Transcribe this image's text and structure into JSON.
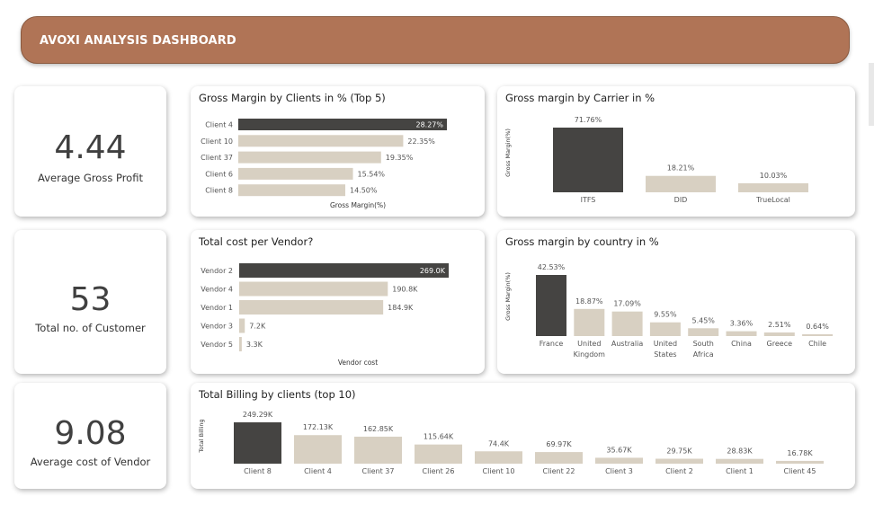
{
  "header": {
    "title": "AVOXI ANALYSIS DASHBOARD"
  },
  "kpis": [
    {
      "value": "4.44",
      "label": "Average Gross Profit"
    },
    {
      "value": "53",
      "label": "Total no. of Customer"
    },
    {
      "value": "9.08",
      "label": "Average cost of Vendor"
    }
  ],
  "colors": {
    "highlight": "#454442",
    "bar": "#d8d0c2",
    "header": "#b07456"
  },
  "chart_data": [
    {
      "id": "clients",
      "type": "bar",
      "orientation": "horizontal",
      "title": "Gross Margin by Clients in % (Top 5)",
      "xlabel": "Gross Margin(%)",
      "ylabel": "",
      "categories": [
        "Client 4",
        "Client 10",
        "Client 37",
        "Client 6",
        "Client 8"
      ],
      "values": [
        28.27,
        22.35,
        19.35,
        15.54,
        14.5
      ],
      "value_labels": [
        "28.27%",
        "22.35%",
        "19.35%",
        "15.54%",
        "14.50%"
      ],
      "xlim": [
        0,
        28.27
      ],
      "highlight_index": 0
    },
    {
      "id": "carrier",
      "type": "bar",
      "orientation": "vertical",
      "title": "Gross margin by Carrier in %",
      "xlabel": "",
      "ylabel": "Gross Margin(%)",
      "categories": [
        "ITFS",
        "DID",
        "TrueLocal"
      ],
      "values": [
        71.76,
        18.21,
        10.03
      ],
      "value_labels": [
        "71.76%",
        "18.21%",
        "10.03%"
      ],
      "ylim": [
        0,
        71.76
      ],
      "highlight_index": 0
    },
    {
      "id": "vendor",
      "type": "bar",
      "orientation": "horizontal",
      "title": "Total cost per Vendor?",
      "xlabel": "Vendor cost",
      "ylabel": "",
      "categories": [
        "Vendor 2",
        "Vendor 4",
        "Vendor 1",
        "Vendor 3",
        "Vendor 5"
      ],
      "values": [
        269.0,
        190.8,
        184.9,
        7.2,
        3.3
      ],
      "value_labels": [
        "269.0K",
        "190.8K",
        "184.9K",
        "7.2K",
        "3.3K"
      ],
      "xlim": [
        0,
        269.0
      ],
      "highlight_index": 0
    },
    {
      "id": "country",
      "type": "bar",
      "orientation": "vertical",
      "title": "Gross margin by country in %",
      "xlabel": "",
      "ylabel": "Gross Margin(%)",
      "categories": [
        "France",
        "United Kingdom",
        "Australia",
        "United States",
        "South Africa",
        "China",
        "Greece",
        "Chile"
      ],
      "category_lines": [
        [
          "France"
        ],
        [
          "United",
          "Kingdom"
        ],
        [
          "Australia"
        ],
        [
          "United",
          "States"
        ],
        [
          "South",
          "Africa"
        ],
        [
          "China"
        ],
        [
          "Greece"
        ],
        [
          "Chile"
        ]
      ],
      "values": [
        42.53,
        18.87,
        17.09,
        9.55,
        5.45,
        3.36,
        2.51,
        0.64
      ],
      "value_labels": [
        "42.53%",
        "18.87%",
        "17.09%",
        "9.55%",
        "5.45%",
        "3.36%",
        "2.51%",
        "0.64%"
      ],
      "ylim": [
        0,
        42.53
      ],
      "highlight_index": 0
    },
    {
      "id": "billing",
      "type": "bar",
      "orientation": "vertical",
      "title": "Total Billing by clients (top 10)",
      "xlabel": "",
      "ylabel": "Total Billing",
      "categories": [
        "Client 8",
        "Client 4",
        "Client 37",
        "Client 26",
        "Client 10",
        "Client 22",
        "Client 3",
        "Client 2",
        "Client 1",
        "Client 45"
      ],
      "values": [
        249.29,
        172.13,
        162.85,
        115.64,
        74.4,
        69.97,
        35.67,
        29.75,
        28.83,
        16.78
      ],
      "value_labels": [
        "249.29K",
        "172.13K",
        "162.85K",
        "115.64K",
        "74.4K",
        "69.97K",
        "35.67K",
        "29.75K",
        "28.83K",
        "16.78K"
      ],
      "ylim": [
        0,
        249.29
      ],
      "highlight_index": 0
    }
  ]
}
